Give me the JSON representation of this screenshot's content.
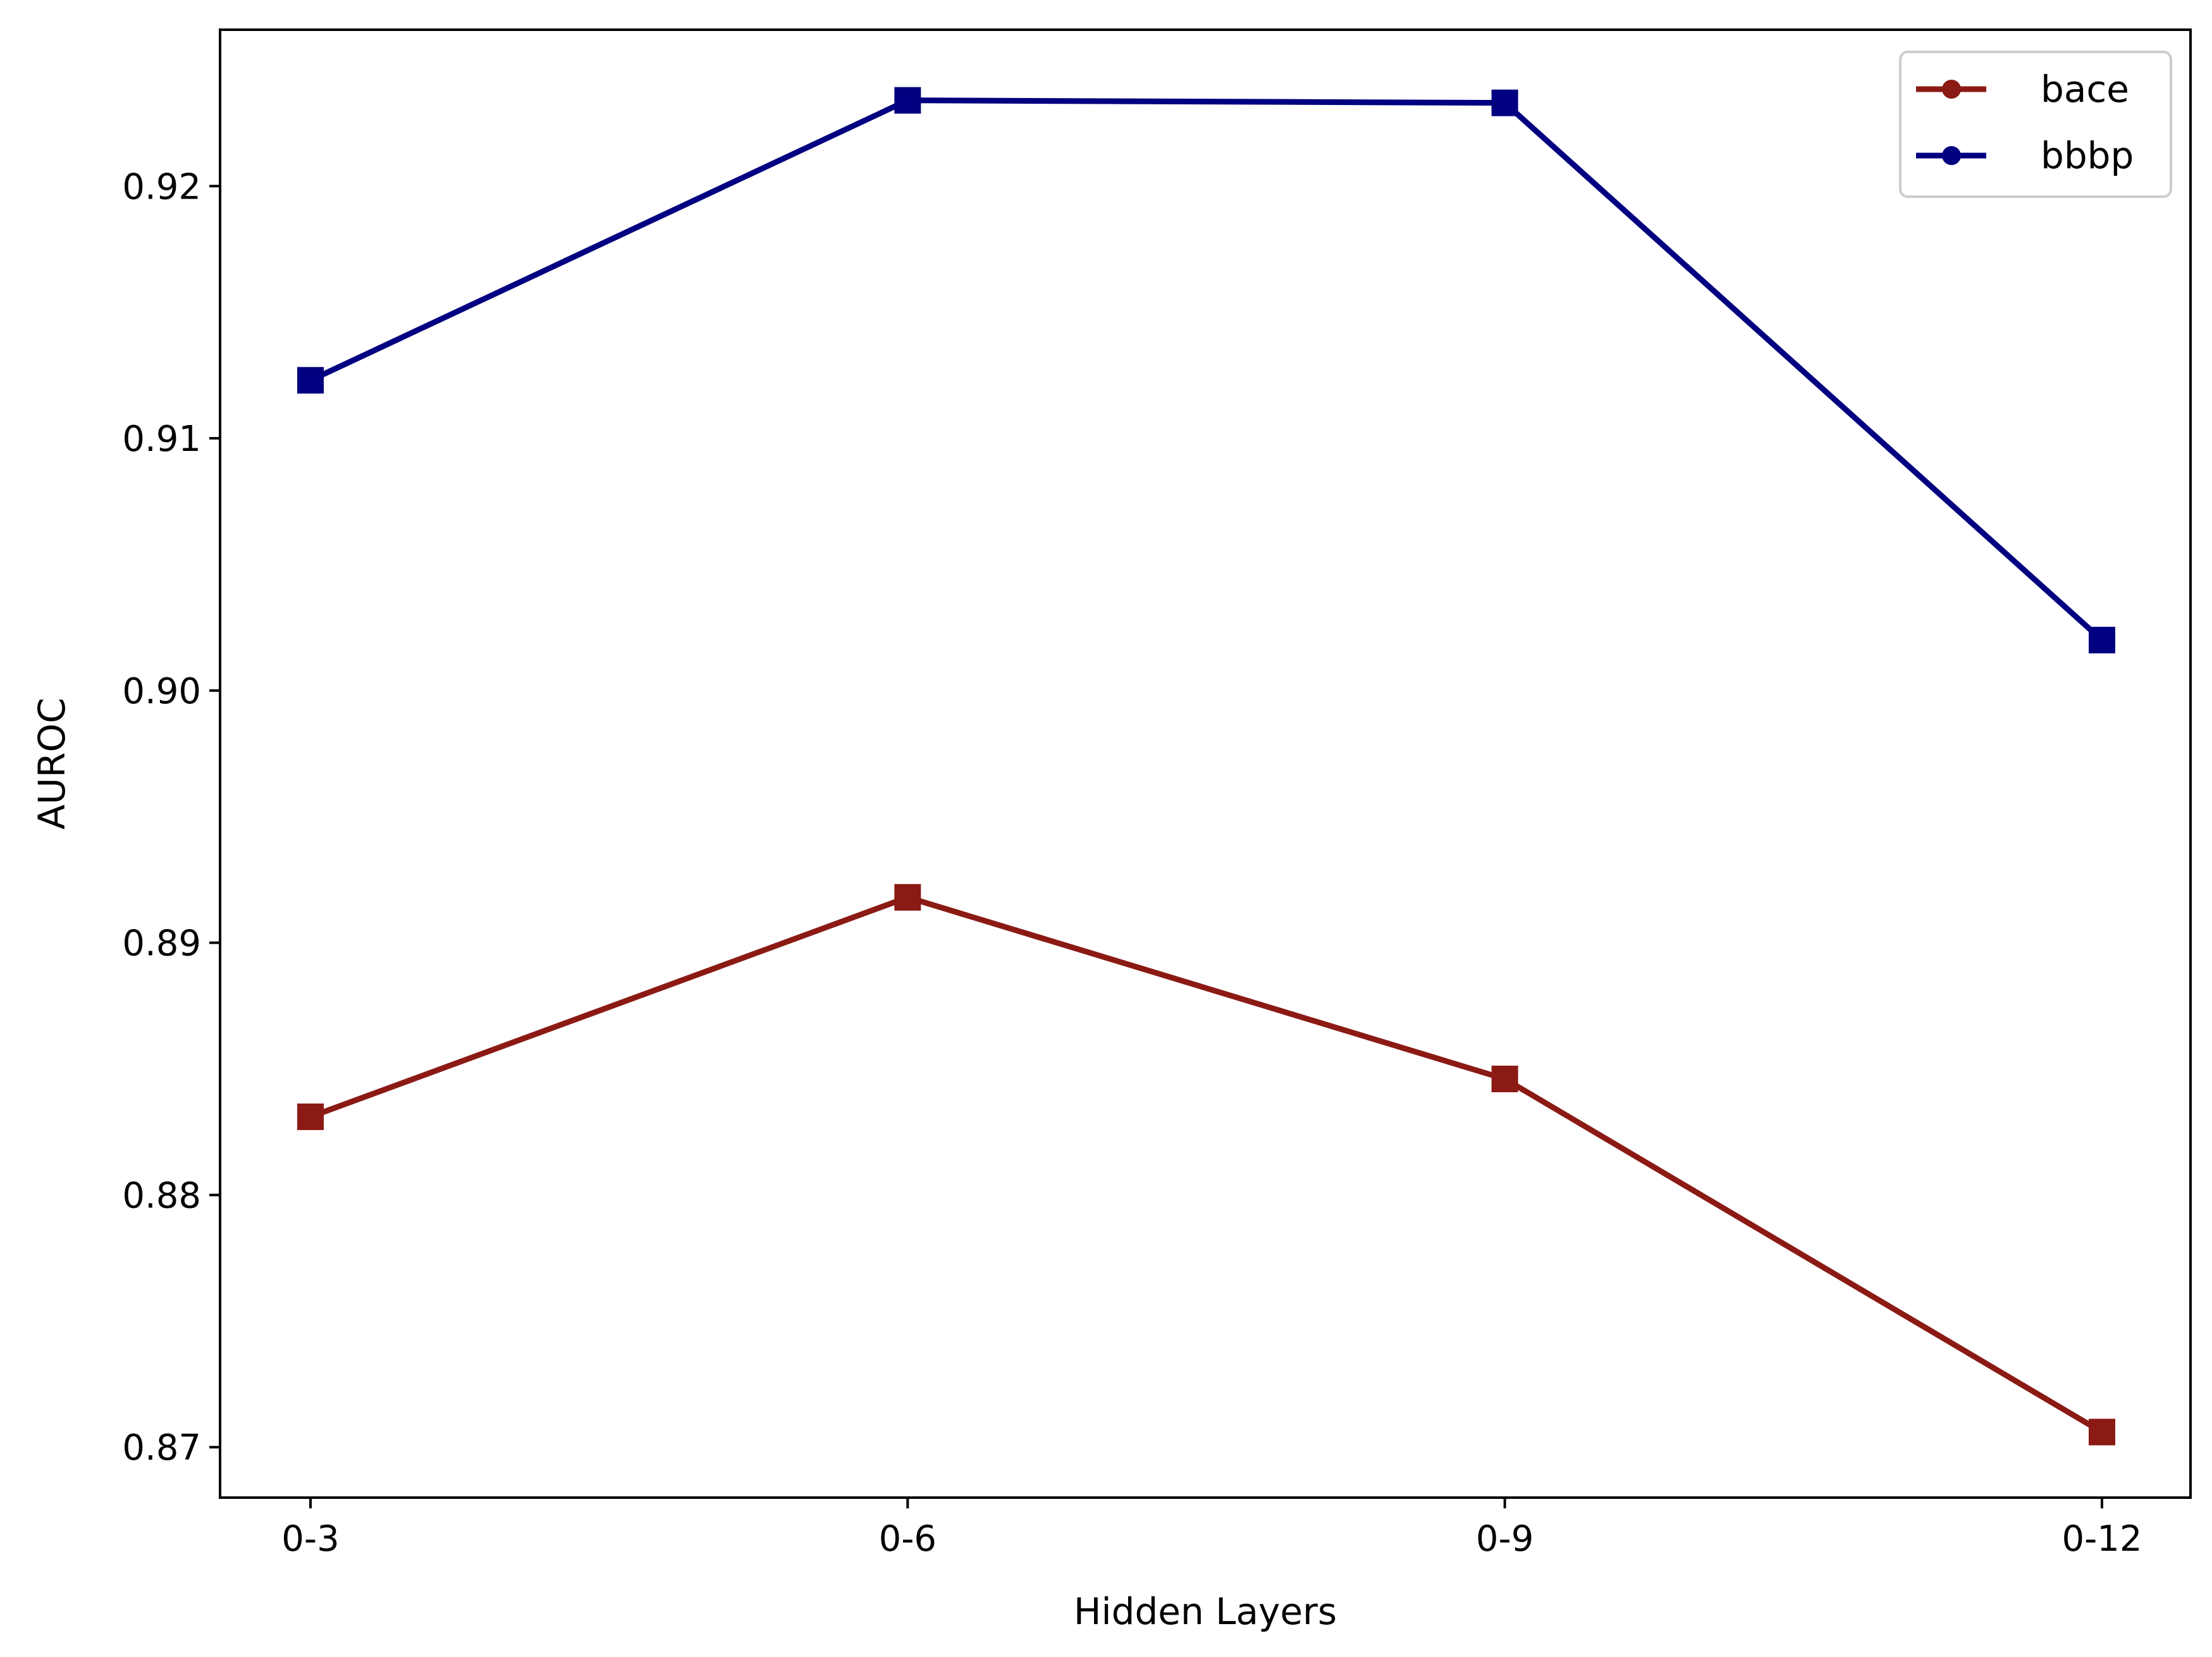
{
  "chart_data": {
    "type": "line",
    "title": "",
    "xlabel": "Hidden Layers",
    "ylabel": "AUROC",
    "categories": [
      "0-3",
      "0-6",
      "0-9",
      "0-12"
    ],
    "ylim": [
      0.868,
      0.9262
    ],
    "yticks": [
      0.87,
      0.88,
      0.89,
      0.9,
      0.91,
      0.92
    ],
    "ytick_labels": [
      "0.87",
      "0.88",
      "0.89",
      "0.90",
      "0.91",
      "0.92"
    ],
    "grid": false,
    "legend": "top-right",
    "marker": "square",
    "series": [
      {
        "name": "bace",
        "color": "#8b1a14",
        "values": [
          0.8831,
          0.8918,
          0.8846,
          0.8706
        ]
      },
      {
        "name": "bbbp",
        "color": "#000080",
        "values": [
          0.9123,
          0.9234,
          0.9233,
          0.902
        ]
      }
    ]
  }
}
